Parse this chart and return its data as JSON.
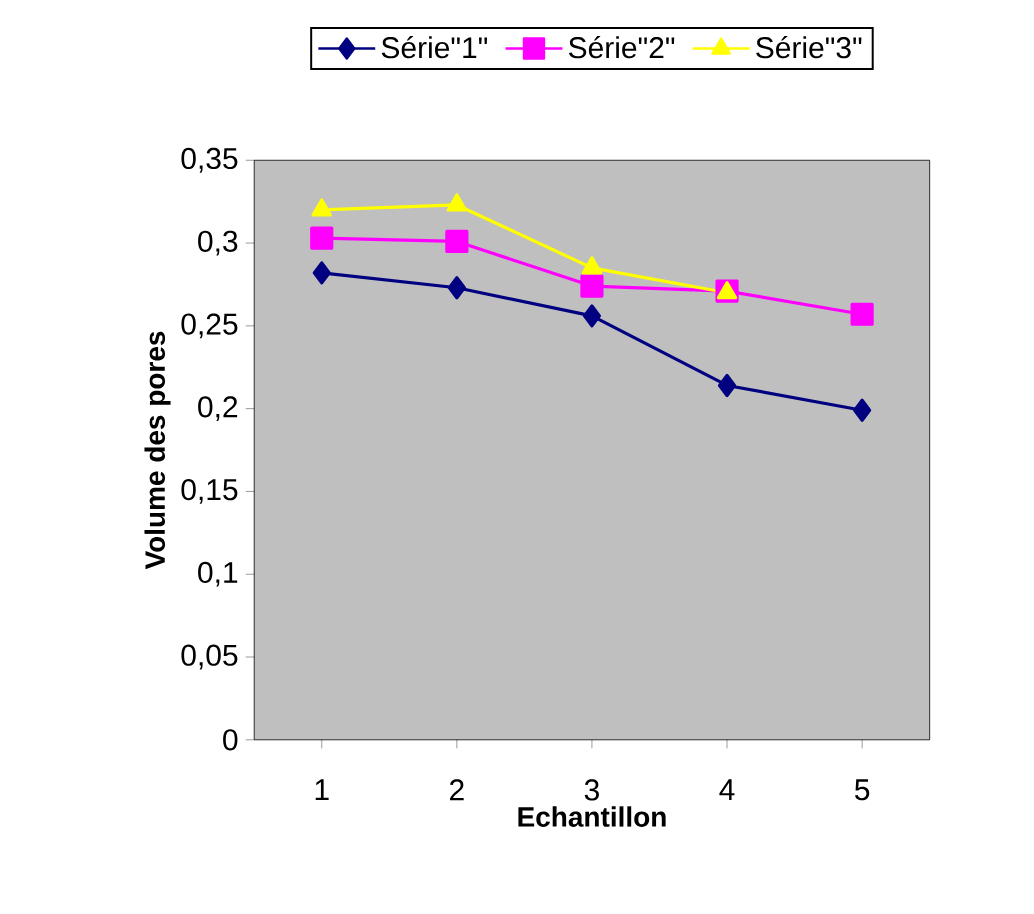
{
  "chart_data": {
    "type": "line",
    "xlabel": "Echantillon",
    "ylabel": "Volume des pores",
    "categories": [
      "1",
      "2",
      "3",
      "4",
      "5"
    ],
    "series": [
      {
        "name": "Série\"1\"",
        "color": "#000080",
        "marker": "diamond",
        "values": [
          0.282,
          0.273,
          0.256,
          0.214,
          0.199
        ]
      },
      {
        "name": "Série\"2\"",
        "color": "#ff00ff",
        "marker": "square",
        "values": [
          0.303,
          0.301,
          0.274,
          0.271,
          0.257
        ]
      },
      {
        "name": "Série\"3\"",
        "color": "#ffff00",
        "marker": "triangle",
        "values": [
          0.32,
          0.323,
          0.285,
          0.27,
          null
        ]
      }
    ],
    "ylim": [
      0,
      0.35
    ],
    "yticks": [
      {
        "value": 0,
        "label": "0"
      },
      {
        "value": 0.05,
        "label": "0,05"
      },
      {
        "value": 0.1,
        "label": "0,1"
      },
      {
        "value": 0.15,
        "label": "0,15"
      },
      {
        "value": 0.2,
        "label": "0,2"
      },
      {
        "value": 0.25,
        "label": "0,25"
      },
      {
        "value": 0.3,
        "label": "0,3"
      },
      {
        "value": 0.35,
        "label": "0,35"
      }
    ],
    "grid": false,
    "legend": "top",
    "line_style": "solid"
  }
}
